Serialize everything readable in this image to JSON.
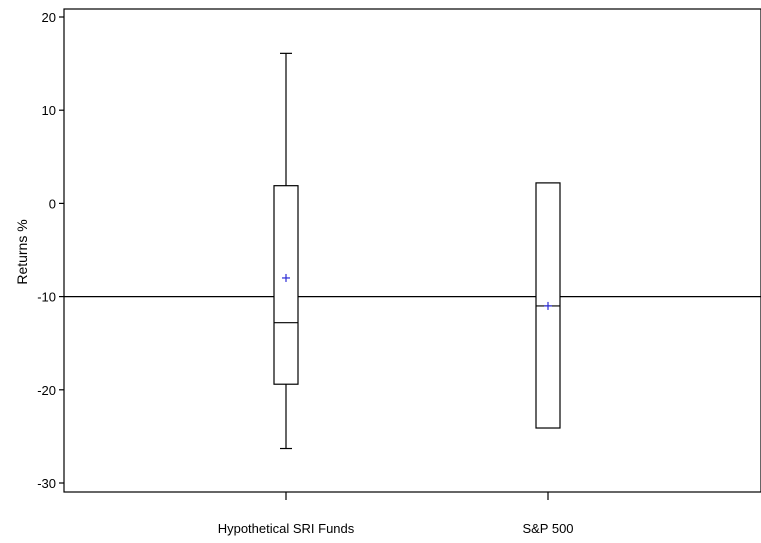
{
  "chart_data": {
    "type": "box",
    "title": "",
    "xlabel": "",
    "ylabel": "Returns %",
    "ylim": [
      -31,
      21
    ],
    "yticks": [
      20,
      10,
      0,
      -10,
      -20,
      -30
    ],
    "reference_line": -10,
    "grid": false,
    "categories": [
      "Hypothetical SRI Funds",
      "S&P 500"
    ],
    "boxes": [
      {
        "category": "Hypothetical SRI Funds",
        "whisker_low": -26.3,
        "q1": -19.4,
        "median": -12.8,
        "q3": 1.9,
        "whisker_high": 16.1,
        "mean": -8.0
      },
      {
        "category": "S&P 500",
        "whisker_low": -24.1,
        "q1": -24.1,
        "median": -11.0,
        "q3": 2.2,
        "whisker_high": 2.2,
        "mean": -11.0
      }
    ],
    "colors": {
      "box": "#000000",
      "mean_marker": "#2b2bd6",
      "reference_line": "#000000"
    }
  }
}
